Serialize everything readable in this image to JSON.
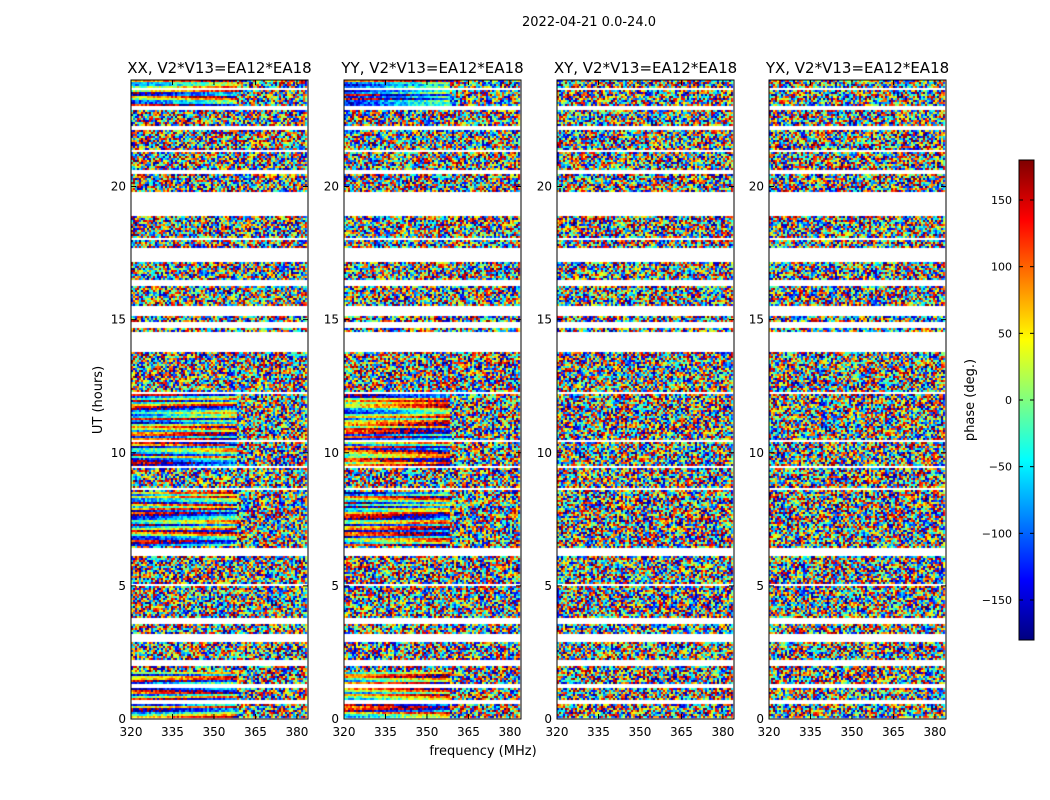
{
  "suptitle": "2022-04-21 0.0-24.0",
  "xlabel": "frequency (MHz)",
  "ylabel": "UT (hours)",
  "colorbar": {
    "label": "phase (deg.)",
    "range": [
      -180,
      180
    ],
    "ticks": [
      150,
      100,
      50,
      0,
      -50,
      -100,
      -150
    ],
    "tick_labels": [
      "150",
      "100",
      "50",
      "0",
      "−50",
      "−100",
      "−150"
    ],
    "colormap": [
      "#00007f",
      "#0000ff",
      "#0080ff",
      "#00ffff",
      "#80ff80",
      "#ffff00",
      "#ff8000",
      "#ff0000",
      "#7f0000"
    ]
  },
  "chart_data": [
    {
      "type": "heatmap",
      "title": "XX, V2*V13=EA12*EA18",
      "x_ticks": [
        320,
        335,
        350,
        365,
        380
      ],
      "x_tick_labels": [
        "320",
        "335",
        "350",
        "365",
        "380"
      ],
      "xlim": [
        320,
        384
      ],
      "y_ticks": [
        0,
        5,
        10,
        15,
        20
      ],
      "y_tick_labels": [
        "0",
        "5",
        "10",
        "15",
        "20"
      ],
      "ylim": [
        0,
        24
      ],
      "coherent_bands_hours": [
        [
          6.5,
          8.5
        ],
        [
          9.5,
          12.2
        ],
        [
          23.0,
          24.0
        ],
        [
          0.0,
          1.8
        ]
      ]
    },
    {
      "type": "heatmap",
      "title": "YY, V2*V13=EA12*EA18",
      "x_ticks": [
        320,
        335,
        350,
        365,
        380
      ],
      "x_tick_labels": [
        "320",
        "335",
        "350",
        "365",
        "380"
      ],
      "xlim": [
        320,
        384
      ],
      "y_ticks": [
        0,
        5,
        10,
        15,
        20
      ],
      "y_tick_labels": [
        "0",
        "5",
        "10",
        "15",
        "20"
      ],
      "ylim": [
        0,
        24
      ],
      "coherent_bands_hours": [
        [
          6.5,
          8.5
        ],
        [
          9.5,
          12.2
        ],
        [
          23.0,
          24.0
        ],
        [
          0.0,
          1.8
        ]
      ]
    },
    {
      "type": "heatmap",
      "title": "XY, V2*V13=EA12*EA18",
      "x_ticks": [
        320,
        335,
        350,
        365,
        380
      ],
      "x_tick_labels": [
        "320",
        "335",
        "350",
        "365",
        "380"
      ],
      "xlim": [
        320,
        384
      ],
      "y_ticks": [
        0,
        5,
        10,
        15,
        20
      ],
      "y_tick_labels": [
        "0",
        "5",
        "10",
        "15",
        "20"
      ],
      "ylim": [
        0,
        24
      ],
      "coherent_bands_hours": []
    },
    {
      "type": "heatmap",
      "title": "YX, V2*V13=EA12*EA18",
      "x_ticks": [
        320,
        335,
        350,
        365,
        380
      ],
      "x_tick_labels": [
        "320",
        "335",
        "350",
        "365",
        "380"
      ],
      "xlim": [
        320,
        384
      ],
      "y_ticks": [
        0,
        5,
        10,
        15,
        20
      ],
      "y_tick_labels": [
        "0",
        "5",
        "10",
        "15",
        "20"
      ],
      "ylim": [
        0,
        24
      ],
      "coherent_bands_hours": []
    }
  ],
  "data_gaps_hours": [
    [
      0.6,
      0.7
    ],
    [
      1.2,
      1.3
    ],
    [
      2.0,
      2.2
    ],
    [
      2.9,
      3.2
    ],
    [
      3.6,
      3.8
    ],
    [
      5.0,
      5.1
    ],
    [
      6.1,
      6.4
    ],
    [
      8.6,
      8.7
    ],
    [
      9.4,
      9.5
    ],
    [
      10.4,
      10.5
    ],
    [
      12.2,
      12.3
    ],
    [
      13.8,
      14.5
    ],
    [
      14.7,
      14.9
    ],
    [
      15.1,
      15.5
    ],
    [
      16.3,
      16.5
    ],
    [
      17.2,
      17.7
    ],
    [
      18.0,
      18.1
    ],
    [
      18.9,
      19.8
    ],
    [
      20.5,
      20.6
    ],
    [
      21.3,
      21.4
    ],
    [
      22.1,
      22.3
    ],
    [
      22.9,
      23.0
    ],
    [
      23.6,
      23.7
    ]
  ]
}
